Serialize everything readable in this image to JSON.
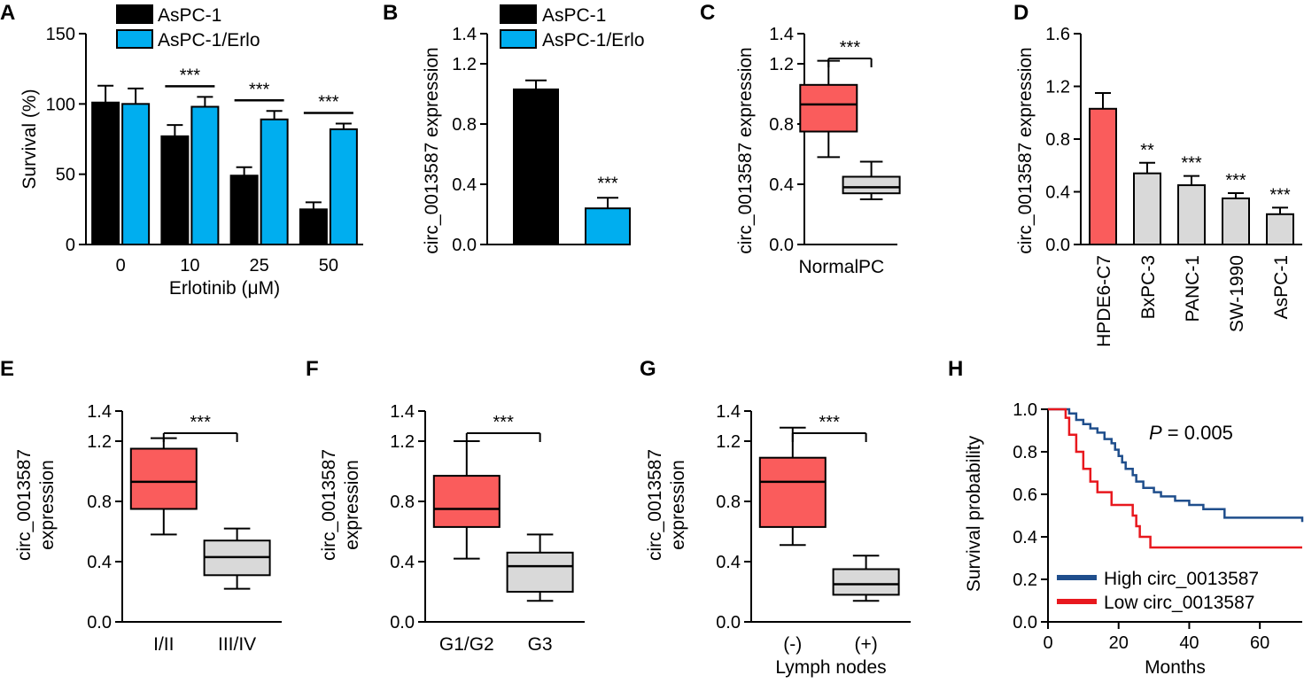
{
  "chart_data": [
    {
      "panel": "A",
      "type": "bar",
      "xlabel": "Erlotinib (μM)",
      "ylabel": "Survival (%)",
      "ylim": [
        0,
        150
      ],
      "yticks": [
        "0",
        "50",
        "100",
        "150"
      ],
      "categories": [
        "0",
        "10",
        "25",
        "50"
      ],
      "series": [
        {
          "name": "AsPC-1",
          "color": "#000000",
          "values": [
            101,
            77,
            49,
            25
          ],
          "errors": [
            12,
            8,
            6,
            5
          ]
        },
        {
          "name": "AsPC-1/Erlo",
          "color": "#00AEEF",
          "values": [
            100,
            98,
            89,
            82
          ],
          "errors": [
            11,
            7,
            6,
            4
          ]
        }
      ],
      "annotations": [
        {
          "category": "10",
          "text": "***"
        },
        {
          "category": "25",
          "text": "***"
        },
        {
          "category": "50",
          "text": "***"
        }
      ]
    },
    {
      "panel": "B",
      "type": "bar",
      "xlabel": "",
      "ylabel": "circ_0013587 expression",
      "ylim": [
        0,
        1.4
      ],
      "yticks": [
        "0.0",
        "0.4",
        "0.8",
        "1.2",
        "1.4"
      ],
      "categories": [
        "AsPC-1",
        "AsPC-1/Erlo"
      ],
      "values": [
        1.03,
        0.24
      ],
      "errors": [
        0.06,
        0.07
      ],
      "colors": [
        "#000000",
        "#00AEEF"
      ],
      "legend": [
        "AsPC-1",
        "AsPC-1/Erlo"
      ],
      "annotations": [
        {
          "category": "AsPC-1/Erlo",
          "text": "***"
        }
      ]
    },
    {
      "panel": "C",
      "type": "box",
      "xlabel": "",
      "ylabel": "circ_0013587 expression",
      "ylim": [
        0,
        1.4
      ],
      "yticks": [
        "0.0",
        "0.4",
        "0.8",
        "1.2",
        "1.4"
      ],
      "categories": [
        "Normal",
        "PC"
      ],
      "boxes": [
        {
          "min": 0.58,
          "q1": 0.75,
          "median": 0.93,
          "q3": 1.06,
          "max": 1.22,
          "color": "#FA5C5C"
        },
        {
          "min": 0.3,
          "q1": 0.34,
          "median": 0.38,
          "q3": 0.45,
          "max": 0.55,
          "color": "#D9D9D9"
        }
      ],
      "significance": "***"
    },
    {
      "panel": "D",
      "type": "bar",
      "xlabel": "",
      "ylabel": "circ_0013587 expression",
      "ylim": [
        0,
        1.6
      ],
      "yticks": [
        "0.0",
        "0.4",
        "0.8",
        "1.2",
        "1.6"
      ],
      "categories": [
        "HPDE6-C7",
        "BxPC-3",
        "PANC-1",
        "SW-1990",
        "AsPC-1"
      ],
      "values": [
        1.03,
        0.54,
        0.45,
        0.35,
        0.23
      ],
      "errors": [
        0.12,
        0.08,
        0.07,
        0.04,
        0.05
      ],
      "colors": [
        "#FA5C5C",
        "#D9D9D9",
        "#D9D9D9",
        "#D9D9D9",
        "#D9D9D9"
      ],
      "annotations": [
        {
          "category": "BxPC-3",
          "text": "**"
        },
        {
          "category": "PANC-1",
          "text": "***"
        },
        {
          "category": "SW-1990",
          "text": "***"
        },
        {
          "category": "AsPC-1",
          "text": "***"
        }
      ]
    },
    {
      "panel": "E",
      "type": "box",
      "xlabel": "",
      "ylabel": [
        "circ_0013587",
        "expression"
      ],
      "ylim": [
        0,
        1.4
      ],
      "yticks": [
        "0.0",
        "0.4",
        "0.8",
        "1.2",
        "1.4"
      ],
      "categories": [
        "I/II",
        "III/IV"
      ],
      "boxes": [
        {
          "min": 0.58,
          "q1": 0.75,
          "median": 0.93,
          "q3": 1.15,
          "max": 1.22,
          "color": "#FA5C5C"
        },
        {
          "min": 0.22,
          "q1": 0.31,
          "median": 0.43,
          "q3": 0.54,
          "max": 0.62,
          "color": "#D9D9D9"
        }
      ],
      "significance": "***"
    },
    {
      "panel": "F",
      "type": "box",
      "xlabel": "",
      "ylabel": [
        "circ_0013587",
        "expression"
      ],
      "ylim": [
        0,
        1.4
      ],
      "yticks": [
        "0.0",
        "0.4",
        "0.8",
        "1.2",
        "1.4"
      ],
      "categories": [
        "G1/G2",
        "G3"
      ],
      "boxes": [
        {
          "min": 0.42,
          "q1": 0.63,
          "median": 0.75,
          "q3": 0.97,
          "max": 1.2,
          "color": "#FA5C5C"
        },
        {
          "min": 0.14,
          "q1": 0.2,
          "median": 0.37,
          "q3": 0.46,
          "max": 0.58,
          "color": "#D9D9D9"
        }
      ],
      "significance": "***"
    },
    {
      "panel": "G",
      "type": "box",
      "xlabel": "Lymph nodes",
      "ylabel": [
        "circ_0013587",
        "expression"
      ],
      "ylim": [
        0,
        1.4
      ],
      "yticks": [
        "0.0",
        "0.4",
        "0.8",
        "1.2",
        "1.4"
      ],
      "categories": [
        "(-)",
        "(+)"
      ],
      "boxes": [
        {
          "min": 0.51,
          "q1": 0.63,
          "median": 0.93,
          "q3": 1.09,
          "max": 1.29,
          "color": "#FA5C5C"
        },
        {
          "min": 0.14,
          "q1": 0.18,
          "median": 0.25,
          "q3": 0.35,
          "max": 0.44,
          "color": "#D9D9D9"
        }
      ],
      "significance": "***"
    },
    {
      "panel": "H",
      "type": "line",
      "xlabel": "Months",
      "ylabel": "Survival probability",
      "xlim": [
        0,
        72
      ],
      "ylim": [
        0,
        1.0
      ],
      "xticks": [
        "0",
        "20",
        "40",
        "60"
      ],
      "yticks": [
        "0.0",
        "0.2",
        "0.4",
        "0.6",
        "0.8",
        "1.0"
      ],
      "annotation_prefix": "P",
      "annotation_value": " = 0.005",
      "series": [
        {
          "name": "High circ_0013587",
          "color": "#1F4E8C",
          "x": [
            0,
            6,
            8,
            10,
            12,
            14,
            16,
            18,
            19,
            20,
            21,
            22,
            24,
            25,
            27,
            30,
            32,
            36,
            40,
            44,
            50,
            60,
            66,
            72
          ],
          "y": [
            1.0,
            0.98,
            0.95,
            0.93,
            0.91,
            0.89,
            0.86,
            0.84,
            0.81,
            0.78,
            0.75,
            0.72,
            0.69,
            0.66,
            0.63,
            0.61,
            0.59,
            0.57,
            0.55,
            0.53,
            0.49,
            0.49,
            0.49,
            0.47
          ]
        },
        {
          "name": "Low circ_0013587",
          "color": "#E8181E",
          "x": [
            0,
            5,
            6,
            8,
            10,
            12,
            14,
            18,
            20,
            24,
            25,
            26,
            27,
            29,
            72
          ],
          "y": [
            1.0,
            0.96,
            0.88,
            0.8,
            0.72,
            0.66,
            0.61,
            0.55,
            0.55,
            0.5,
            0.45,
            0.4,
            0.4,
            0.35,
            0.35
          ]
        }
      ]
    }
  ]
}
